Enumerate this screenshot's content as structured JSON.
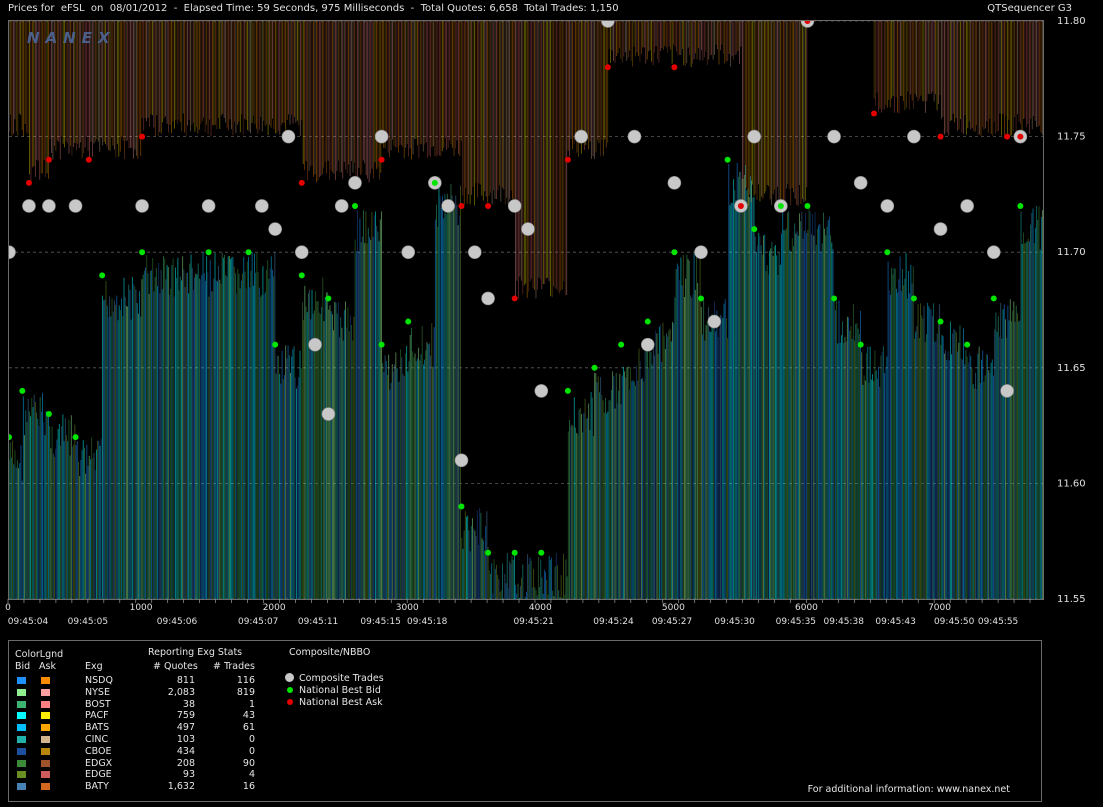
{
  "header": {
    "title_text": "Prices for  eFSL  on  08/01/2012  -  Elapsed Time: 59 Seconds, 975 Milliseconds  -  Total Quotes: 6,658  Total Trades: 1,150",
    "app_name": "QTSequencer G3"
  },
  "watermark": "NANEX",
  "chart_data": {
    "type": "scatter",
    "symbol": "eFSL",
    "date": "08/01/2012",
    "ylim": [
      11.55,
      11.8
    ],
    "y_ticks": [
      11.55,
      11.6,
      11.65,
      11.7,
      11.75,
      11.8
    ],
    "y_tick_labels": [
      "11.55",
      "11.60",
      "11.65",
      "11.70",
      "11.75",
      "11.80"
    ],
    "xlim": [
      0,
      7770
    ],
    "x_ticks": [
      0,
      1000,
      2000,
      3000,
      4000,
      5000,
      6000,
      7000
    ],
    "x_tick_labels": [
      "0",
      "1000",
      "2000",
      "3000",
      "4000",
      "5000",
      "6000",
      "7000"
    ],
    "time_labels": [
      {
        "x": 150,
        "label": "09:45:04"
      },
      {
        "x": 600,
        "label": "09:45:05"
      },
      {
        "x": 1270,
        "label": "09:45:06"
      },
      {
        "x": 1880,
        "label": "09:45:07"
      },
      {
        "x": 2330,
        "label": "09:45:11"
      },
      {
        "x": 2800,
        "label": "09:45:15"
      },
      {
        "x": 3150,
        "label": "09:45:18"
      },
      {
        "x": 3950,
        "label": "09:45:21"
      },
      {
        "x": 4550,
        "label": "09:45:24"
      },
      {
        "x": 4990,
        "label": "09:45:27"
      },
      {
        "x": 5460,
        "label": "09:45:30"
      },
      {
        "x": 5920,
        "label": "09:45:35"
      },
      {
        "x": 6280,
        "label": "09:45:38"
      },
      {
        "x": 6670,
        "label": "09:45:43"
      },
      {
        "x": 7110,
        "label": "09:45:50"
      },
      {
        "x": 7440,
        "label": "09:45:55"
      }
    ],
    "series": [
      {
        "name": "Composite Trades",
        "x": [
          0,
          150,
          300,
          500,
          1000,
          1500,
          1900,
          2000,
          2100,
          2200,
          2300,
          2400,
          2500,
          2600,
          2800,
          3000,
          3200,
          3300,
          3400,
          3500,
          3600,
          3800,
          3900,
          4000,
          4300,
          4500,
          4700,
          4800,
          5000,
          5200,
          5300,
          5500,
          5600,
          5800,
          6000,
          6200,
          6400,
          6600,
          6800,
          7000,
          7200,
          7400,
          7500,
          7600
        ],
        "y": [
          11.7,
          11.72,
          11.72,
          11.72,
          11.72,
          11.72,
          11.72,
          11.71,
          11.75,
          11.7,
          11.66,
          11.63,
          11.72,
          11.73,
          11.75,
          11.7,
          11.73,
          11.72,
          11.61,
          11.7,
          11.68,
          11.72,
          11.71,
          11.64,
          11.75,
          11.8,
          11.75,
          11.66,
          11.73,
          11.7,
          11.67,
          11.72,
          11.75,
          11.72,
          11.8,
          11.75,
          11.73,
          11.72,
          11.75,
          11.71,
          11.72,
          11.7,
          11.64,
          11.75
        ]
      },
      {
        "name": "National Best Bid",
        "x": [
          0,
          100,
          300,
          500,
          700,
          1000,
          1500,
          1800,
          2000,
          2200,
          2400,
          2600,
          2800,
          3000,
          3200,
          3400,
          3600,
          3800,
          4000,
          4200,
          4400,
          4600,
          4800,
          5000,
          5200,
          5400,
          5600,
          5800,
          6000,
          6200,
          6400,
          6600,
          6800,
          7000,
          7200,
          7400,
          7600
        ],
        "y": [
          11.62,
          11.64,
          11.63,
          11.62,
          11.69,
          11.7,
          11.7,
          11.7,
          11.66,
          11.69,
          11.68,
          11.72,
          11.66,
          11.67,
          11.73,
          11.59,
          11.57,
          11.57,
          11.57,
          11.64,
          11.65,
          11.66,
          11.67,
          11.7,
          11.68,
          11.74,
          11.71,
          11.72,
          11.72,
          11.68,
          11.66,
          11.7,
          11.68,
          11.67,
          11.66,
          11.68,
          11.72
        ]
      },
      {
        "name": "National Best Ask",
        "x": [
          150,
          300,
          600,
          1000,
          2200,
          2800,
          3400,
          3600,
          3800,
          4200,
          4500,
          5000,
          5500,
          6000,
          6500,
          7000,
          7500,
          7600
        ],
        "y": [
          11.73,
          11.74,
          11.74,
          11.75,
          11.73,
          11.74,
          11.72,
          11.72,
          11.68,
          11.74,
          11.78,
          11.78,
          11.72,
          11.8,
          11.76,
          11.75,
          11.75,
          11.75
        ]
      }
    ]
  },
  "legend": {
    "color_legend_title": "ColorLgnd",
    "bid_header": "Bid",
    "ask_header": "Ask",
    "exchange_header": "Exg",
    "stats_title": "Reporting Exg Stats",
    "quotes_header": "# Quotes",
    "trades_header": "# Trades",
    "composite_title": "Composite/NBBO",
    "composite_items": [
      {
        "label": "Composite Trades",
        "color": "#c8c8c8"
      },
      {
        "label": "National Best Bid",
        "color": "#00e600"
      },
      {
        "label": "National Best Ask",
        "color": "#e60000"
      }
    ],
    "rows": [
      {
        "exchange": "NSDQ",
        "quotes": "811",
        "trades": "116",
        "bid_color": "#1e90ff",
        "ask_color": "#ff8c00"
      },
      {
        "exchange": "NYSE",
        "quotes": "2,083",
        "trades": "819",
        "bid_color": "#90ee90",
        "ask_color": "#ffa0a0"
      },
      {
        "exchange": "BOST",
        "quotes": "38",
        "trades": "1",
        "bid_color": "#3cb371",
        "ask_color": "#ff8080"
      },
      {
        "exchange": "PACF",
        "quotes": "759",
        "trades": "43",
        "bid_color": "#00ffff",
        "ask_color": "#ffee00"
      },
      {
        "exchange": "BATS",
        "quotes": "497",
        "trades": "61",
        "bid_color": "#00bfff",
        "ask_color": "#ffa500"
      },
      {
        "exchange": "CINC",
        "quotes": "103",
        "trades": "0",
        "bid_color": "#20b2aa",
        "ask_color": "#d2b48c"
      },
      {
        "exchange": "CBOE",
        "quotes": "434",
        "trades": "0",
        "bid_color": "#1e50a0",
        "ask_color": "#b8860b"
      },
      {
        "exchange": "EDGX",
        "quotes": "208",
        "trades": "90",
        "bid_color": "#3a8a3a",
        "ask_color": "#a0522d"
      },
      {
        "exchange": "EDGE",
        "quotes": "93",
        "trades": "4",
        "bid_color": "#6b8e23",
        "ask_color": "#cd5c5c"
      },
      {
        "exchange": "BATY",
        "quotes": "1,632",
        "trades": "16",
        "bid_color": "#4682b4",
        "ask_color": "#d2691e"
      }
    ],
    "footer": "For additional information: www.nanex.net"
  }
}
